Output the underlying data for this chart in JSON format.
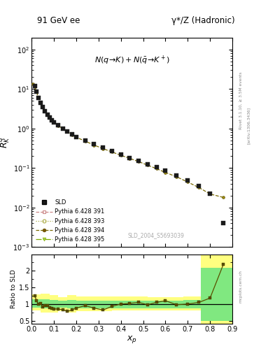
{
  "title_left": "91 GeV ee",
  "title_right": "γ*/Z (Hadronic)",
  "annotation": "N(q→ K)+N(̅q→ K⁺)",
  "watermark": "SLD_2004_S5693039",
  "rivet_text": "Rivet 3.1.10, ≥ 3.5M events",
  "arxiv_text": "[arXiv:1306.3436]",
  "mcplots_text": "mcplots.cern.ch",
  "sld_x": [
    0.014,
    0.022,
    0.03,
    0.04,
    0.05,
    0.06,
    0.07,
    0.08,
    0.09,
    0.1,
    0.12,
    0.14,
    0.16,
    0.18,
    0.2,
    0.24,
    0.28,
    0.32,
    0.36,
    0.4,
    0.44,
    0.48,
    0.52,
    0.56,
    0.6,
    0.65,
    0.7,
    0.75,
    0.8,
    0.86
  ],
  "sld_y": [
    12.0,
    8.5,
    6.0,
    4.5,
    3.5,
    2.8,
    2.2,
    1.9,
    1.6,
    1.45,
    1.2,
    1.0,
    0.85,
    0.72,
    0.62,
    0.5,
    0.4,
    0.33,
    0.27,
    0.22,
    0.18,
    0.155,
    0.125,
    0.105,
    0.085,
    0.065,
    0.048,
    0.035,
    0.022,
    0.004
  ],
  "mc_x": [
    0.005,
    0.014,
    0.022,
    0.03,
    0.04,
    0.05,
    0.06,
    0.07,
    0.08,
    0.09,
    0.1,
    0.12,
    0.14,
    0.16,
    0.18,
    0.2,
    0.24,
    0.28,
    0.32,
    0.36,
    0.4,
    0.44,
    0.48,
    0.52,
    0.56,
    0.6,
    0.65,
    0.7,
    0.75,
    0.8,
    0.86
  ],
  "mc_y": [
    13.5,
    11.5,
    8.5,
    6.0,
    4.6,
    3.5,
    2.9,
    2.35,
    1.95,
    1.65,
    1.45,
    1.18,
    0.98,
    0.83,
    0.7,
    0.6,
    0.48,
    0.38,
    0.31,
    0.255,
    0.21,
    0.175,
    0.145,
    0.118,
    0.096,
    0.077,
    0.06,
    0.044,
    0.032,
    0.022,
    0.018
  ],
  "ratio_x": [
    0.014,
    0.022,
    0.03,
    0.04,
    0.05,
    0.06,
    0.07,
    0.08,
    0.09,
    0.1,
    0.12,
    0.14,
    0.16,
    0.18,
    0.2,
    0.24,
    0.28,
    0.32,
    0.36,
    0.4,
    0.44,
    0.48,
    0.52,
    0.56,
    0.6,
    0.65,
    0.7,
    0.75,
    0.8,
    0.86
  ],
  "ratio_y": [
    1.25,
    1.1,
    1.0,
    1.02,
    0.92,
    0.95,
    0.95,
    0.9,
    0.87,
    0.85,
    0.85,
    0.83,
    0.78,
    0.82,
    0.88,
    0.95,
    0.88,
    0.82,
    0.93,
    1.0,
    1.02,
    1.05,
    0.98,
    1.05,
    1.1,
    0.98,
    1.0,
    1.05,
    1.18,
    2.2
  ],
  "band_xedges": [
    0.0,
    0.04,
    0.08,
    0.12,
    0.16,
    0.2,
    0.28,
    0.36,
    0.44,
    0.52,
    0.6,
    0.68,
    0.76,
    0.84,
    0.9
  ],
  "band_y_lo": [
    0.8,
    0.75,
    0.75,
    0.78,
    0.75,
    0.78,
    0.78,
    0.8,
    0.8,
    0.8,
    0.8,
    0.8,
    0.4,
    0.4
  ],
  "band_y_hi": [
    1.3,
    1.32,
    1.28,
    1.2,
    1.28,
    1.22,
    1.22,
    1.22,
    1.22,
    1.2,
    1.2,
    1.22,
    2.55,
    2.55
  ],
  "band_g_lo": [
    0.9,
    0.87,
    0.88,
    0.9,
    0.88,
    0.88,
    0.88,
    0.88,
    0.88,
    0.88,
    0.88,
    0.88,
    0.5,
    0.5
  ],
  "band_g_hi": [
    1.14,
    1.15,
    1.13,
    1.1,
    1.13,
    1.1,
    1.1,
    1.1,
    1.1,
    1.1,
    1.1,
    1.12,
    2.1,
    2.1
  ],
  "color_sld": "#1a1a1a",
  "color_mc_line": "#6b5c00",
  "color_yellow": "#ffff80",
  "color_green": "#80e880",
  "ylim_main": [
    0.001,
    200
  ],
  "ylim_ratio": [
    0.4,
    2.5
  ],
  "xlim": [
    0.0,
    0.9
  ]
}
